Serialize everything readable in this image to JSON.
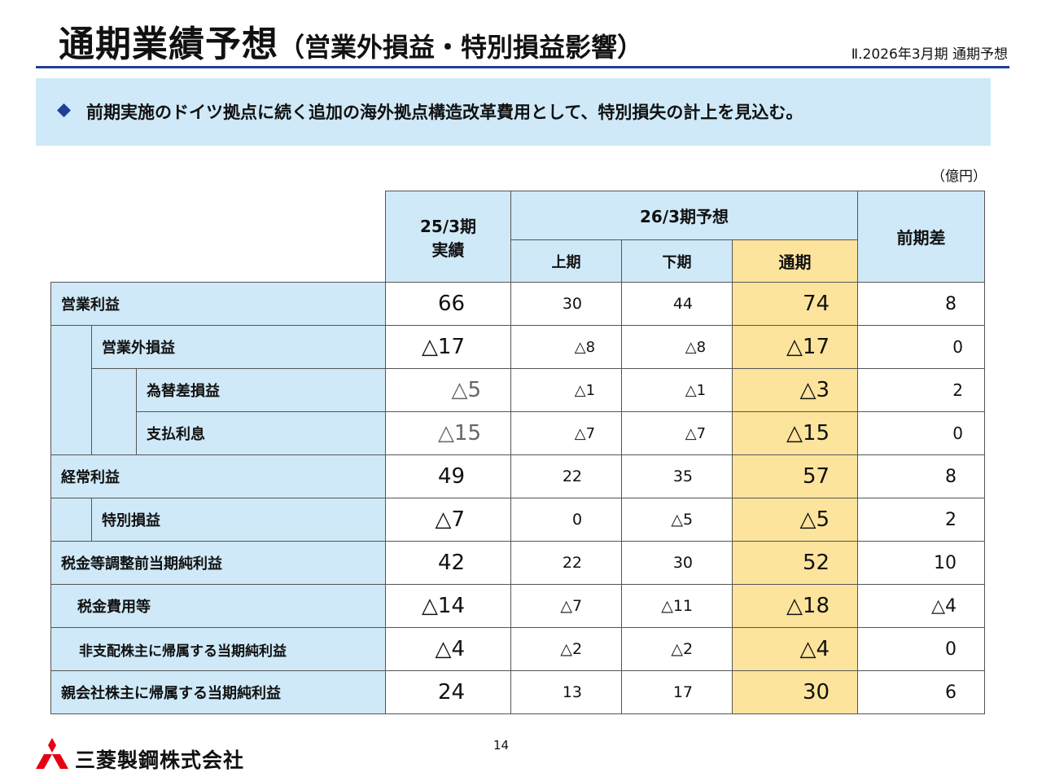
{
  "header": {
    "title": "通期業績予想",
    "title_sub": "（営業外損益・特別損益影響）",
    "section_label": "Ⅱ.2026年3月期 通期予想"
  },
  "banner": {
    "bullet_icon": "diamond-icon",
    "text": "前期実施のドイツ拠点に続く追加の海外拠点構造改革費用として、特別損失の計上を見込む。"
  },
  "unit": "（億円）",
  "table": {
    "headers": {
      "prev_year_line1": "25/3期",
      "prev_year_line2": "実績",
      "forecast_group": "26/3期予想",
      "h1": "上期",
      "h2": "下期",
      "full_year": "通期",
      "diff": "前期差"
    },
    "rows": [
      {
        "label": "営業利益",
        "prev": "66",
        "h1": "30",
        "h2": "44",
        "full": "74",
        "diff": "8"
      },
      {
        "label": "営業外損益",
        "prev": "△17",
        "h1": "△8",
        "h2": "△8",
        "full": "△17",
        "diff": "0"
      },
      {
        "label": "為替差損益",
        "prev": "△5",
        "h1": "△1",
        "h2": "△1",
        "full": "△3",
        "diff": "2"
      },
      {
        "label": "支払利息",
        "prev": "△15",
        "h1": "△7",
        "h2": "△7",
        "full": "△15",
        "diff": "0"
      },
      {
        "label": "経常利益",
        "prev": "49",
        "h1": "22",
        "h2": "35",
        "full": "57",
        "diff": "8"
      },
      {
        "label": "特別損益",
        "prev": "△7",
        "h1": "0",
        "h2": "△5",
        "full": "△5",
        "diff": "2"
      },
      {
        "label": "税金等調整前当期純利益",
        "prev": "42",
        "h1": "22",
        "h2": "30",
        "full": "52",
        "diff": "10"
      },
      {
        "label": "税金費用等",
        "prev": "△14",
        "h1": "△7",
        "h2": "△11",
        "full": "△18",
        "diff": "△4"
      },
      {
        "label": "非支配株主に帰属する当期純利益",
        "prev": "△4",
        "h1": "△2",
        "h2": "△2",
        "full": "△4",
        "diff": "0"
      },
      {
        "label": "親会社株主に帰属する当期純利益",
        "prev": "24",
        "h1": "13",
        "h2": "17",
        "full": "30",
        "diff": "6"
      }
    ]
  },
  "footer": {
    "page_number": "14",
    "company_name": "三菱製鋼株式会社",
    "logo_icon": "three-diamonds-logo-icon"
  },
  "colors": {
    "header_fill": "#cfe9f8",
    "full_year_fill": "#fde49c",
    "title_rule": "#1f3f9a",
    "bullet": "#1f3f9a",
    "logo_red": "#e60012"
  }
}
